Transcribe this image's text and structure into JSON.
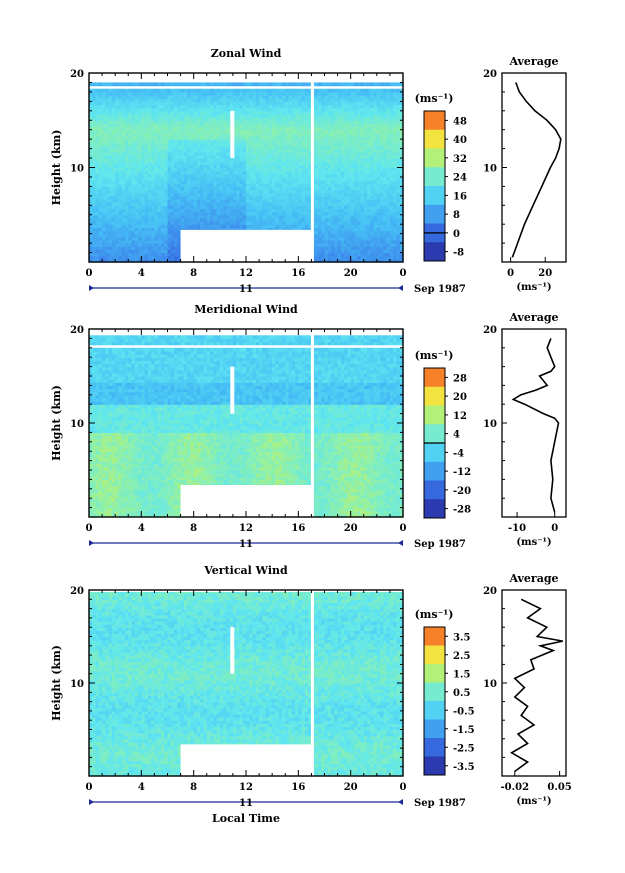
{
  "chart_data": [
    {
      "type": "heatmap",
      "title": "Zonal Wind",
      "ylabel": "Height (km)",
      "unit": "(ms⁻¹)",
      "xlim": [
        0,
        24
      ],
      "ylim": [
        0,
        20
      ],
      "x_ticks": [
        "0",
        "4",
        "8",
        "12",
        "16",
        "20",
        "0"
      ],
      "y_ticks": [
        "10",
        "20"
      ],
      "date_day": "11",
      "date_label": "Sep 1987",
      "colorbar": {
        "labels": [
          "48",
          "40",
          "32",
          "24",
          "16",
          "8",
          "0",
          "-8"
        ],
        "min": -12,
        "max": 52,
        "zero_line": 0
      },
      "gap": {
        "x_start": 7,
        "x_end": 17,
        "y_top": 3.4
      },
      "profile": {
        "title": "Average",
        "xlim": [
          -5,
          32
        ],
        "x_ticks": [
          "0",
          "20"
        ],
        "y_ticks": [
          "10",
          "20"
        ],
        "xlabel": "(ms⁻¹)",
        "heights": [
          0.5,
          2,
          4,
          6,
          8,
          10,
          11,
          12,
          13,
          14,
          15,
          16,
          17,
          18,
          19
        ],
        "values": [
          1,
          4,
          8,
          13,
          18,
          23,
          26,
          28,
          29,
          26,
          21,
          14,
          9,
          5,
          3
        ]
      }
    },
    {
      "type": "heatmap",
      "title": "Meridional Wind",
      "ylabel": "Height (km)",
      "unit": "(ms⁻¹)",
      "xlim": [
        0,
        24
      ],
      "ylim": [
        0,
        20
      ],
      "x_ticks": [
        "0",
        "4",
        "8",
        "12",
        "16",
        "20",
        "0"
      ],
      "y_ticks": [
        "10",
        "20"
      ],
      "date_day": "11",
      "date_label": "Sep 1987",
      "colorbar": {
        "labels": [
          "28",
          "20",
          "12",
          "4",
          "-4",
          "-12",
          "-20",
          "-28"
        ],
        "min": -32,
        "max": 32,
        "zero_line": 0
      },
      "gap": {
        "x_start": 7,
        "x_end": 17,
        "y_top": 3.4
      },
      "profile": {
        "title": "Average",
        "xlim": [
          -14,
          3
        ],
        "x_ticks": [
          "-10",
          "0"
        ],
        "y_ticks": [
          "10",
          "20"
        ],
        "xlabel": "(ms⁻¹)",
        "heights": [
          0.5,
          2,
          4,
          6,
          8,
          9,
          10,
          10.5,
          11,
          12,
          12.5,
          13,
          13.5,
          14,
          15,
          15.5,
          16,
          17,
          18,
          19
        ],
        "values": [
          0,
          -1,
          -0.5,
          -1,
          0,
          0.5,
          1,
          0,
          -3,
          -8,
          -11,
          -9,
          -5,
          -2,
          -4,
          -1,
          0,
          -1,
          -2,
          -1
        ]
      }
    },
    {
      "type": "heatmap",
      "title": "Vertical Wind",
      "ylabel": "Height (km)",
      "xlabel": "Local Time",
      "unit": "(ms⁻¹)",
      "xlim": [
        0,
        24
      ],
      "ylim": [
        0,
        20
      ],
      "x_ticks": [
        "0",
        "4",
        "8",
        "12",
        "16",
        "20",
        "0"
      ],
      "y_ticks": [
        "10",
        "20"
      ],
      "date_day": "11",
      "date_label": "Sep 1987",
      "colorbar": {
        "labels": [
          "3.5",
          "2.5",
          "1.5",
          "0.5",
          "-0.5",
          "-1.5",
          "-2.5",
          "-3.5"
        ],
        "min": -4,
        "max": 4
      },
      "gap": {
        "x_start": 7,
        "x_end": 17,
        "y_top": 3.4
      },
      "profile": {
        "title": "Average",
        "xlim": [
          -0.04,
          0.06
        ],
        "x_ticks": [
          "-0.02",
          "0.05"
        ],
        "y_ticks": [
          "10",
          "20"
        ],
        "xlabel": "(ms⁻¹)",
        "heights": [
          0.5,
          1.5,
          2.5,
          3.5,
          4.5,
          5.5,
          6.5,
          7.5,
          8.5,
          9.5,
          10.5,
          11.5,
          12.5,
          13.5,
          14,
          14.5,
          15,
          16,
          17,
          18,
          19
        ],
        "values": [
          -0.02,
          0.0,
          -0.025,
          0.0,
          -0.015,
          0.01,
          -0.01,
          0.0,
          -0.02,
          -0.005,
          -0.02,
          0.01,
          0.005,
          0.04,
          0.02,
          0.055,
          0.015,
          0.03,
          0.0,
          0.02,
          -0.01
        ]
      }
    }
  ]
}
